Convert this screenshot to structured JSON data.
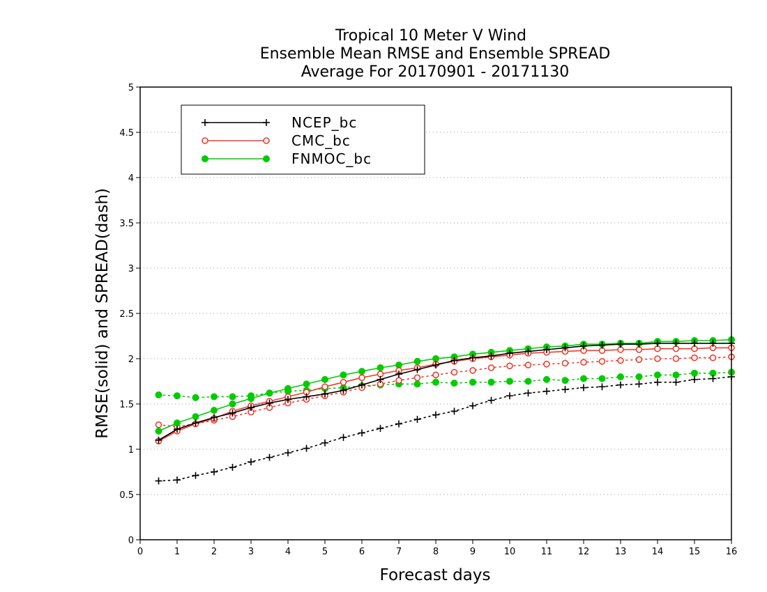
{
  "chart_data": {
    "type": "line",
    "title": [
      "Tropical 10 Meter V Wind",
      "Ensemble Mean RMSE and Ensemble SPREAD",
      "Average For 20170901 - 20171130"
    ],
    "xlabel": "Forecast days",
    "ylabel": "RMSE(solid) and SPREAD(dash)",
    "xlim": [
      0,
      16
    ],
    "ylim": [
      0,
      5
    ],
    "x_ticks": [
      "0",
      "1",
      "2",
      "3",
      "4",
      "5",
      "6",
      "7",
      "8",
      "9",
      "10",
      "11",
      "12",
      "13",
      "14",
      "15",
      "16"
    ],
    "y_ticks": [
      "0",
      "0.5",
      "1",
      "1.5",
      "2",
      "2.5",
      "3",
      "3.5",
      "4",
      "4.5",
      "5"
    ],
    "grid": "horizontal dotted",
    "legend_placement": "top-left",
    "x": [
      0.5,
      1,
      1.5,
      2,
      2.5,
      3,
      3.5,
      4,
      4.5,
      5,
      5.5,
      6,
      6.5,
      7,
      7.5,
      8,
      8.5,
      9,
      9.5,
      10,
      10.5,
      11,
      11.5,
      12,
      12.5,
      13,
      13.5,
      14,
      14.5,
      15,
      15.5,
      16
    ],
    "series": [
      {
        "name": "NCEP_bc",
        "color": "#000000",
        "marker": "plus",
        "rmse": [
          1.1,
          1.22,
          1.29,
          1.35,
          1.4,
          1.46,
          1.51,
          1.55,
          1.58,
          1.61,
          1.65,
          1.71,
          1.77,
          1.83,
          1.88,
          1.93,
          1.98,
          2.01,
          2.03,
          2.06,
          2.08,
          2.1,
          2.12,
          2.14,
          2.15,
          2.16,
          2.16,
          2.17,
          2.17,
          2.17,
          2.17,
          2.17
        ],
        "spread": [
          0.65,
          0.66,
          0.71,
          0.75,
          0.8,
          0.86,
          0.91,
          0.96,
          1.01,
          1.07,
          1.13,
          1.18,
          1.23,
          1.28,
          1.33,
          1.38,
          1.42,
          1.48,
          1.54,
          1.59,
          1.62,
          1.64,
          1.66,
          1.68,
          1.69,
          1.71,
          1.72,
          1.74,
          1.74,
          1.77,
          1.78,
          1.8
        ]
      },
      {
        "name": "CMC_bc",
        "color": "#ef3b2c",
        "marker": "open-circle",
        "rmse": [
          1.09,
          1.2,
          1.28,
          1.34,
          1.42,
          1.48,
          1.53,
          1.58,
          1.63,
          1.69,
          1.74,
          1.79,
          1.83,
          1.87,
          1.9,
          1.94,
          1.97,
          2.0,
          2.02,
          2.04,
          2.06,
          2.07,
          2.08,
          2.09,
          2.09,
          2.1,
          2.1,
          2.11,
          2.11,
          2.11,
          2.12,
          2.12
        ],
        "spread": [
          1.27,
          1.25,
          1.28,
          1.32,
          1.36,
          1.41,
          1.46,
          1.51,
          1.55,
          1.59,
          1.63,
          1.68,
          1.72,
          1.76,
          1.79,
          1.82,
          1.85,
          1.87,
          1.9,
          1.92,
          1.93,
          1.94,
          1.95,
          1.96,
          1.97,
          1.98,
          1.99,
          2.0,
          2.0,
          2.01,
          2.01,
          2.02
        ]
      },
      {
        "name": "FNMOC_bc",
        "color": "#00cc00",
        "marker": "filled-circle",
        "rmse": [
          1.2,
          1.29,
          1.36,
          1.43,
          1.5,
          1.56,
          1.62,
          1.67,
          1.72,
          1.77,
          1.82,
          1.86,
          1.9,
          1.93,
          1.97,
          2.0,
          2.02,
          2.05,
          2.07,
          2.09,
          2.11,
          2.13,
          2.14,
          2.16,
          2.16,
          2.17,
          2.17,
          2.19,
          2.19,
          2.2,
          2.2,
          2.21
        ],
        "spread": [
          1.6,
          1.59,
          1.57,
          1.58,
          1.58,
          1.59,
          1.62,
          1.64,
          1.65,
          1.67,
          1.68,
          1.7,
          1.71,
          1.72,
          1.72,
          1.74,
          1.73,
          1.74,
          1.74,
          1.75,
          1.75,
          1.77,
          1.76,
          1.78,
          1.78,
          1.8,
          1.8,
          1.82,
          1.82,
          1.84,
          1.84,
          1.85
        ]
      }
    ]
  }
}
